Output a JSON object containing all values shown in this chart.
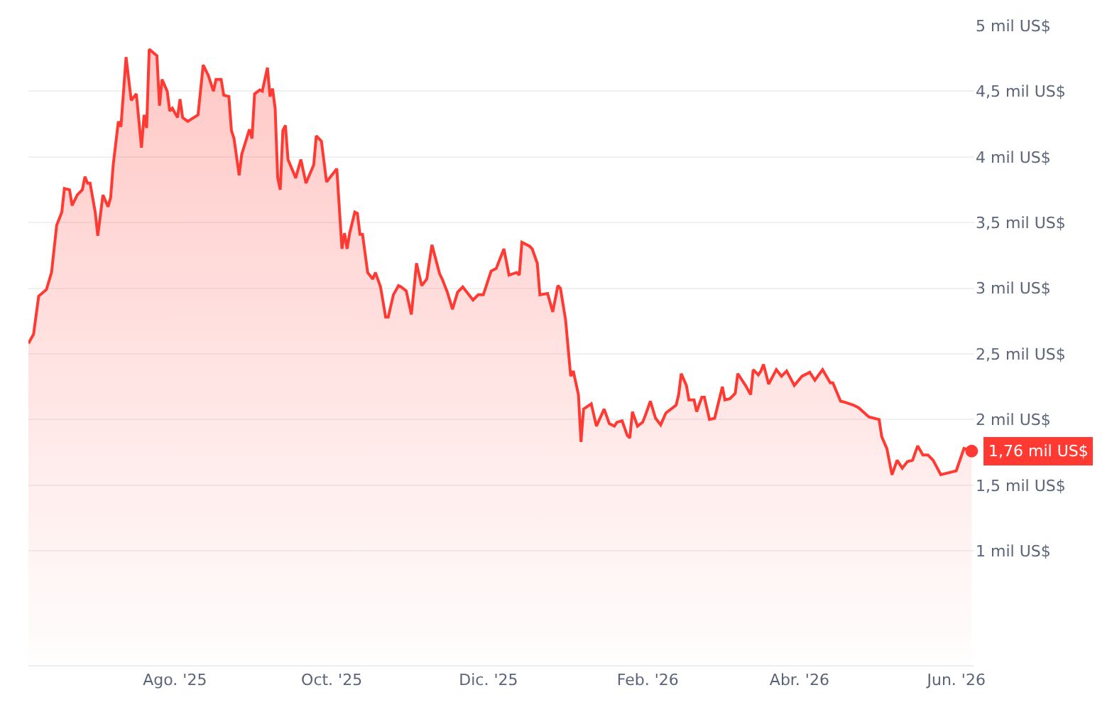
{
  "chart_data": {
    "type": "area",
    "x": [
      "2025-06-05",
      "2025-06-07",
      "2025-06-09",
      "2025-06-12",
      "2025-06-14",
      "2025-06-16",
      "2025-06-18",
      "2025-06-19",
      "2025-06-21",
      "2025-06-22",
      "2025-06-24",
      "2025-06-26",
      "2025-06-27",
      "2025-06-28",
      "2025-06-29",
      "2025-07-01",
      "2025-07-02",
      "2025-07-04",
      "2025-07-06",
      "2025-07-07",
      "2025-07-08",
      "2025-07-10",
      "2025-07-11",
      "2025-07-13",
      "2025-07-15",
      "2025-07-17",
      "2025-07-19",
      "2025-07-20",
      "2025-07-21",
      "2025-07-22",
      "2025-07-25",
      "2025-07-26",
      "2025-07-27",
      "2025-07-29",
      "2025-07-30",
      "2025-07-31",
      "2025-08-02",
      "2025-08-03",
      "2025-08-04",
      "2025-08-06",
      "2025-08-10",
      "2025-08-12",
      "2025-08-14",
      "2025-08-16",
      "2025-08-17",
      "2025-08-19",
      "2025-08-20",
      "2025-08-22",
      "2025-08-23",
      "2025-08-24",
      "2025-08-26",
      "2025-08-27",
      "2025-08-30",
      "2025-08-31",
      "2025-09-01",
      "2025-09-03",
      "2025-09-04",
      "2025-09-06",
      "2025-09-07",
      "2025-09-08",
      "2025-09-09",
      "2025-09-10",
      "2025-09-11",
      "2025-09-12",
      "2025-09-13",
      "2025-09-14",
      "2025-09-17",
      "2025-09-19",
      "2025-09-21",
      "2025-09-24",
      "2025-09-25",
      "2025-09-27",
      "2025-09-29",
      "2025-10-03",
      "2025-10-05",
      "2025-10-06",
      "2025-10-07",
      "2025-10-08",
      "2025-10-10",
      "2025-10-11",
      "2025-10-12",
      "2025-10-13",
      "2025-10-15",
      "2025-10-17",
      "2025-10-18",
      "2025-10-20",
      "2025-10-22",
      "2025-10-23",
      "2025-10-25",
      "2025-10-27",
      "2025-10-28",
      "2025-10-30",
      "2025-11-01",
      "2025-11-03",
      "2025-11-05",
      "2025-11-07",
      "2025-11-09",
      "2025-11-12",
      "2025-11-13",
      "2025-11-15",
      "2025-11-17",
      "2025-11-19",
      "2025-11-21",
      "2025-11-25",
      "2025-11-27",
      "2025-11-29",
      "2025-12-02",
      "2025-12-04",
      "2025-12-07",
      "2025-12-09",
      "2025-12-12",
      "2025-12-13",
      "2025-12-14",
      "2025-12-17",
      "2025-12-18",
      "2025-12-20",
      "2025-12-21",
      "2025-12-24",
      "2025-12-26",
      "2025-12-28",
      "2025-12-29",
      "2025-12-31",
      "2026-01-02",
      "2026-01-03",
      "2026-01-05",
      "2026-01-06",
      "2026-01-07",
      "2026-01-10",
      "2026-01-12",
      "2026-01-15",
      "2026-01-17",
      "2026-01-19",
      "2026-01-20",
      "2026-01-22",
      "2026-01-24",
      "2026-01-25",
      "2026-01-26",
      "2026-01-28",
      "2026-01-30",
      "2026-01-31",
      "2026-02-02",
      "2026-02-04",
      "2026-02-06",
      "2026-02-08",
      "2026-02-12",
      "2026-02-13",
      "2026-02-14",
      "2026-02-16",
      "2026-02-17",
      "2026-02-19",
      "2026-02-20",
      "2026-02-22",
      "2026-02-23",
      "2026-02-25",
      "2026-02-27",
      "2026-03-02",
      "2026-03-03",
      "2026-03-05",
      "2026-03-07",
      "2026-03-08",
      "2026-03-10",
      "2026-03-11",
      "2026-03-13",
      "2026-03-14",
      "2026-03-16",
      "2026-03-17",
      "2026-03-18",
      "2026-03-20",
      "2026-03-23",
      "2026-03-25",
      "2026-03-27",
      "2026-03-30",
      "2026-04-02",
      "2026-04-05",
      "2026-04-07",
      "2026-04-10",
      "2026-04-13",
      "2026-04-14",
      "2026-04-17",
      "2026-04-19",
      "2026-04-22",
      "2026-04-24",
      "2026-04-28",
      "2026-05-02",
      "2026-05-03",
      "2026-05-05",
      "2026-05-07",
      "2026-05-09",
      "2026-05-11",
      "2026-05-13",
      "2026-05-15",
      "2026-05-17",
      "2026-05-19",
      "2026-05-21",
      "2026-05-23",
      "2026-05-26",
      "2026-05-30",
      "2026-06-01",
      "2026-06-04",
      "2026-06-07"
    ],
    "series": [
      {
        "color": "#ff3a33",
        "values": [
          2.58,
          2.65,
          2.94,
          2.99,
          3.12,
          3.48,
          3.58,
          3.76,
          3.75,
          3.63,
          3.71,
          3.75,
          3.85,
          3.8,
          3.8,
          3.58,
          3.4,
          3.71,
          3.62,
          3.69,
          3.94,
          4.27,
          4.23,
          4.76,
          4.43,
          4.48,
          4.07,
          4.32,
          4.22,
          4.82,
          4.77,
          4.39,
          4.59,
          4.5,
          4.35,
          4.37,
          4.3,
          4.44,
          4.3,
          4.27,
          4.32,
          4.7,
          4.62,
          4.5,
          4.59,
          4.59,
          4.47,
          4.46,
          4.2,
          4.14,
          3.86,
          4.02,
          4.21,
          4.14,
          4.48,
          4.51,
          4.5,
          4.68,
          4.46,
          4.52,
          4.37,
          3.84,
          3.75,
          4.2,
          4.24,
          3.98,
          3.84,
          3.98,
          3.8,
          3.94,
          4.16,
          4.12,
          3.81,
          3.91,
          3.3,
          3.42,
          3.3,
          3.42,
          3.58,
          3.57,
          3.41,
          3.41,
          3.12,
          3.07,
          3.12,
          3.01,
          2.78,
          2.78,
          2.95,
          3.02,
          3.01,
          2.98,
          2.8,
          3.19,
          3.02,
          3.07,
          3.33,
          3.11,
          3.07,
          2.97,
          2.84,
          2.97,
          3.01,
          2.91,
          2.95,
          2.95,
          3.13,
          3.15,
          3.3,
          3.1,
          3.12,
          3.1,
          3.35,
          3.32,
          3.3,
          3.19,
          2.95,
          2.96,
          2.82,
          3.02,
          3.0,
          2.76,
          2.33,
          2.37,
          2.19,
          1.83,
          2.08,
          2.12,
          1.95,
          2.08,
          1.97,
          1.95,
          1.98,
          1.99,
          1.88,
          1.86,
          2.06,
          1.95,
          1.98,
          2.03,
          2.14,
          2.01,
          1.96,
          2.05,
          2.11,
          2.19,
          2.35,
          2.26,
          2.15,
          2.15,
          2.06,
          2.17,
          2.17,
          2.0,
          2.01,
          2.25,
          2.15,
          2.16,
          2.2,
          2.35,
          2.29,
          2.26,
          2.19,
          2.38,
          2.34,
          2.37,
          2.42,
          2.27,
          2.38,
          2.33,
          2.37,
          2.26,
          2.33,
          2.36,
          2.3,
          2.38,
          2.28,
          2.28,
          2.14,
          2.13,
          2.11,
          2.09,
          2.02,
          2.0,
          1.87,
          1.78,
          1.58,
          1.69,
          1.63,
          1.68,
          1.69,
          1.8,
          1.73,
          1.73,
          1.69,
          1.58,
          1.6,
          1.61,
          1.78,
          1.76
        ]
      }
    ],
    "xlim": [
      "2025-06-05",
      "2026-06-08"
    ],
    "xticks": [
      {
        "value": "2025-08-01",
        "label": "Ago. '25"
      },
      {
        "value": "2025-10-01",
        "label": "Oct. '25"
      },
      {
        "value": "2025-12-01",
        "label": "Dic. '25"
      },
      {
        "value": "2026-02-01",
        "label": "Feb. '26"
      },
      {
        "value": "2026-04-01",
        "label": "Abr. '26"
      },
      {
        "value": "2026-06-01",
        "label": "Jun. '26"
      }
    ],
    "ylim": [
      0.13,
      5
    ],
    "yticks": [
      {
        "value": 1,
        "label": "1 mil US$"
      },
      {
        "value": 1.5,
        "label": "1,5 mil US$"
      },
      {
        "value": 2,
        "label": "2 mil US$"
      },
      {
        "value": 2.5,
        "label": "2,5 mil US$"
      },
      {
        "value": 3,
        "label": "3 mil US$"
      },
      {
        "value": 3.5,
        "label": "3,5 mil US$"
      },
      {
        "value": 4,
        "label": "4 mil US$"
      },
      {
        "value": 4.5,
        "label": "4,5 mil US$"
      },
      {
        "value": 5,
        "label": "5 mil US$"
      }
    ],
    "grid": "y",
    "annotations": [
      {
        "text": "1,76 mil US$",
        "x": "2026-06-07",
        "y": 1.76
      }
    ]
  }
}
